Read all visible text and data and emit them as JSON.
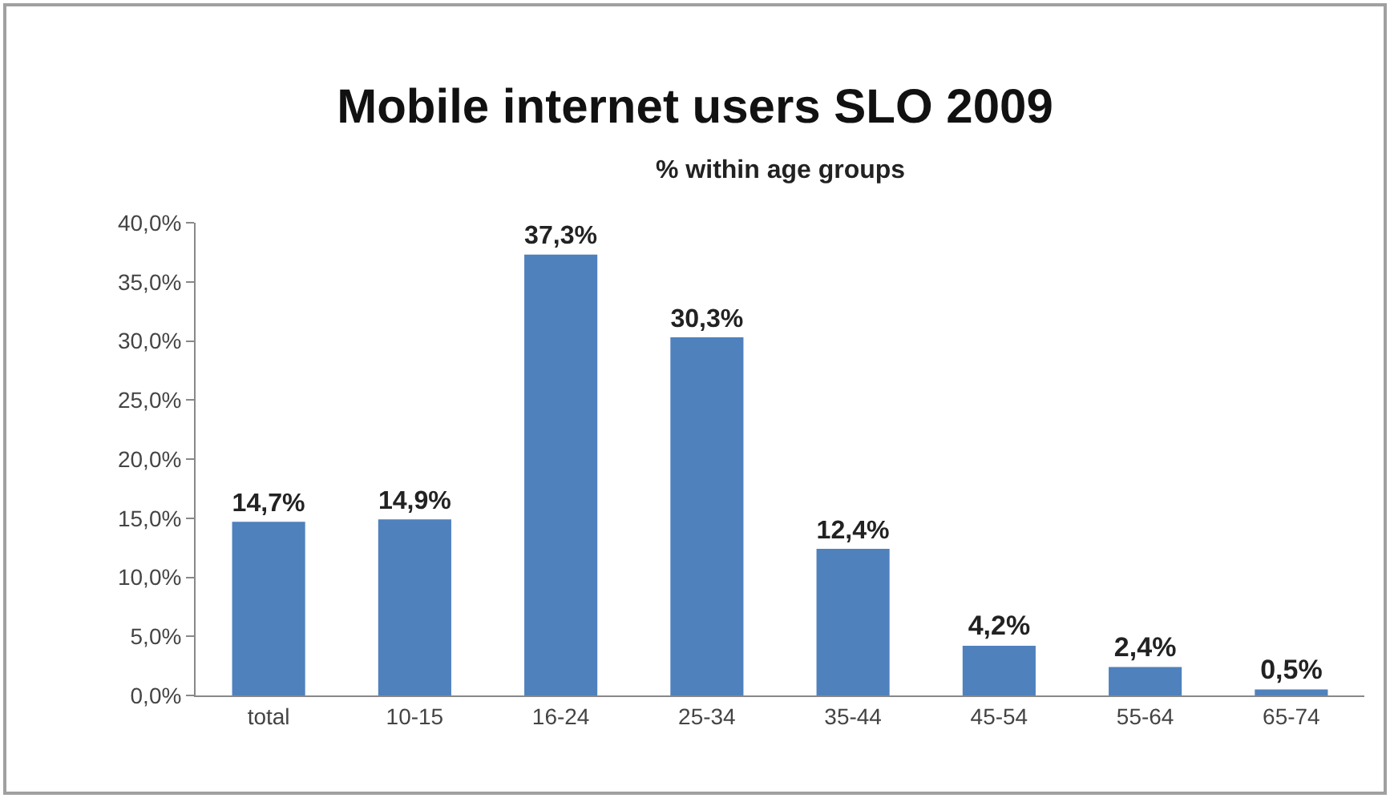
{
  "chart_data": {
    "type": "bar",
    "title": "Mobile internet users SLO 2009",
    "subtitle": "% within age groups",
    "categories": [
      "total",
      "10-15",
      "16-24",
      "25-34",
      "35-44",
      "45-54",
      "55-64",
      "65-74"
    ],
    "values": [
      14.7,
      14.9,
      37.3,
      30.3,
      12.4,
      4.2,
      2.4,
      0.5
    ],
    "value_labels": [
      "14,7%",
      "14,9%",
      "37,3%",
      "30,3%",
      "12,4%",
      "4,2%",
      "2,4%",
      "0,5%"
    ],
    "color": "#4f81bd",
    "ylim": [
      0,
      40
    ],
    "yticks": [
      {
        "value": 0,
        "label": "0,0%"
      },
      {
        "value": 5,
        "label": "5,0%"
      },
      {
        "value": 10,
        "label": "10,0%"
      },
      {
        "value": 15,
        "label": "15,0%"
      },
      {
        "value": 20,
        "label": "20,0%"
      },
      {
        "value": 25,
        "label": "25,0%"
      },
      {
        "value": 30,
        "label": "30,0%"
      },
      {
        "value": 35,
        "label": "35,0%"
      },
      {
        "value": 40,
        "label": "40,0%"
      }
    ],
    "grid": false
  }
}
